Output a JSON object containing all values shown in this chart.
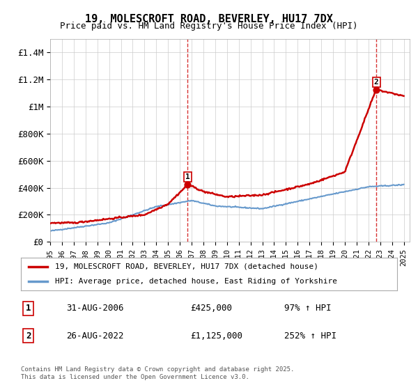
{
  "title_line1": "19, MOLESCROFT ROAD, BEVERLEY, HU17 7DX",
  "title_line2": "Price paid vs. HM Land Registry's House Price Index (HPI)",
  "ylabel": "",
  "ylim": [
    0,
    1500000
  ],
  "yticks": [
    0,
    200000,
    400000,
    600000,
    800000,
    1000000,
    1200000,
    1400000
  ],
  "ytick_labels": [
    "£0",
    "£200K",
    "£400K",
    "£600K",
    "£800K",
    "£1M",
    "£1.2M",
    "£1.4M"
  ],
  "sale1_date": "31-AUG-2006",
  "sale1_price": 425000,
  "sale1_label": "97% ↑ HPI",
  "sale1_year": 2006.67,
  "sale2_date": "26-AUG-2022",
  "sale2_price": 1125000,
  "sale2_label": "252% ↑ HPI",
  "sale2_year": 2022.67,
  "legend_label1": "19, MOLESCROFT ROAD, BEVERLEY, HU17 7DX (detached house)",
  "legend_label2": "HPI: Average price, detached house, East Riding of Yorkshire",
  "line1_color": "#cc0000",
  "line2_color": "#6699cc",
  "dashed_color": "#cc0000",
  "bg_color": "#f0f4f8",
  "plot_bg": "#ffffff",
  "footer": "Contains HM Land Registry data © Crown copyright and database right 2025.\nThis data is licensed under the Open Government Licence v3.0.",
  "xmin": 1995,
  "xmax": 2025.5
}
